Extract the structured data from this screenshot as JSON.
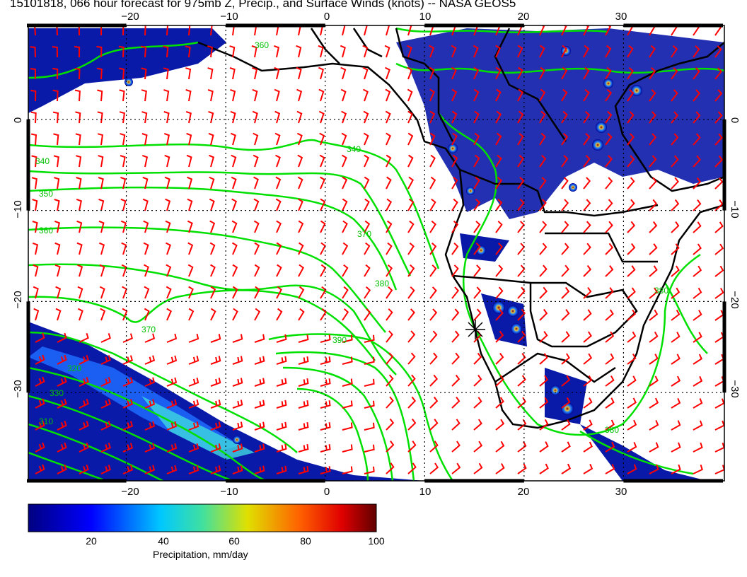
{
  "title": "15101818, 066 hour forecast for 975mb Z, Precip., and Surface Winds (knots) -- NASA GEOS5",
  "map": {
    "lon_range": [
      -30,
      40
    ],
    "lat_range": [
      -40,
      10
    ],
    "lon_ticks": [
      "−20",
      "−10",
      "0",
      "10",
      "20",
      "30"
    ],
    "lat_ticks": [
      "0",
      "−10",
      "−20",
      "−30"
    ],
    "contour_labels": [
      "340",
      "350",
      "360",
      "370",
      "320",
      "330",
      "310",
      "380",
      "390"
    ],
    "colors": {
      "contour": "#00e000",
      "wind_barb": "#ff0000",
      "coastline": "#000000",
      "precip_low": "#00008c",
      "precip_high": "#800000"
    }
  },
  "colorbar": {
    "label": "Precipitation, mm/day",
    "ticks": [
      "20",
      "40",
      "60",
      "80",
      "100"
    ],
    "range": [
      0,
      100
    ]
  }
}
